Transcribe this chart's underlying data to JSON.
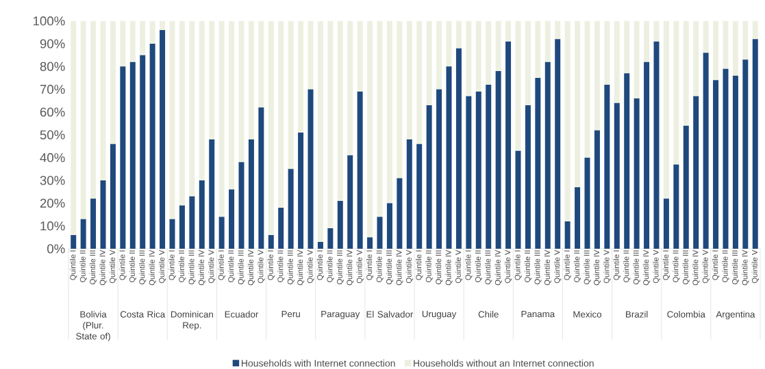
{
  "chart_data": {
    "type": "bar",
    "stacked": true,
    "categories": [
      "Quintile I",
      "Quintile II",
      "Quintile III",
      "Quintile IV",
      "Quintile V",
      "Quintile I",
      "Quintile II",
      "Quintile III",
      "Quintile IV",
      "Quintile V",
      "Quintile I",
      "Quintile II",
      "Quintile III",
      "Quintile IV",
      "Quintile V",
      "Quintile I",
      "Quintile II",
      "Quintile III",
      "Quintile IV",
      "Quintile V",
      "Quintile I",
      "Quintile II",
      "Quintile III",
      "Quintile IV",
      "Quintile V",
      "Quintile I",
      "Quintile II",
      "Quintile III",
      "Quintile IV",
      "Quintile V",
      "Quintile I",
      "Quintile II",
      "Quintile III",
      "Quintile IV",
      "Quintile V",
      "Quintile I",
      "Quintile II",
      "Quintile III",
      "Quintile IV",
      "Quintile V",
      "Quintile I",
      "Quintile II",
      "Quintile III",
      "Quintile IV",
      "Quintile V",
      "Quintile I",
      "Quintile II",
      "Quintile III",
      "Quintile IV",
      "Quintile V",
      "Quintile I",
      "Quintile II",
      "Quintile III",
      "Quintile IV",
      "Quintile V",
      "Quintile I",
      "Quintile II",
      "Quintile III",
      "Quintile IV",
      "Quintile V",
      "Quintile I",
      "Quintile II",
      "Quintile III",
      "Quintile IV",
      "Quintile V",
      "Quintile I",
      "Quintile II",
      "Quintile III",
      "Quintile IV",
      "Quintile V"
    ],
    "series": [
      {
        "name": "Households with Internet connection",
        "color": "#1f497d",
        "values": [
          6,
          13,
          22,
          30,
          46,
          80,
          82,
          85,
          90,
          96,
          13,
          19,
          23,
          30,
          48,
          14,
          26,
          38,
          48,
          62,
          6,
          18,
          35,
          51,
          70,
          3,
          9,
          21,
          41,
          69,
          5,
          14,
          20,
          31,
          48,
          46,
          63,
          70,
          80,
          88,
          67,
          69,
          72,
          78,
          91,
          43,
          63,
          75,
          82,
          92,
          12,
          27,
          40,
          52,
          72,
          64,
          77,
          66,
          82,
          91,
          22,
          37,
          54,
          67,
          86,
          74,
          79,
          76,
          83,
          92
        ]
      },
      {
        "name": "Households without an Internet connection",
        "color": "#edf0e1",
        "values": [
          94,
          87,
          78,
          70,
          54,
          20,
          18,
          15,
          10,
          4,
          87,
          81,
          77,
          70,
          52,
          86,
          74,
          62,
          52,
          38,
          94,
          82,
          65,
          49,
          30,
          97,
          91,
          79,
          59,
          31,
          95,
          86,
          80,
          69,
          52,
          54,
          37,
          30,
          20,
          12,
          33,
          31,
          28,
          22,
          9,
          57,
          37,
          25,
          18,
          8,
          88,
          73,
          60,
          48,
          28,
          36,
          23,
          34,
          18,
          9,
          78,
          63,
          46,
          33,
          14,
          26,
          21,
          24,
          17,
          8
        ]
      }
    ],
    "annotations": [
      {
        "text": "Bolivia (Plur. State of)"
      },
      {
        "text": "Costa Rica"
      },
      {
        "text": "Dominican Rep."
      },
      {
        "text": "Ecuador"
      },
      {
        "text": "Peru"
      },
      {
        "text": "Paraguay"
      },
      {
        "text": "El Salvador"
      },
      {
        "text": "Uruguay"
      },
      {
        "text": "Chile"
      },
      {
        "text": "Panama"
      },
      {
        "text": "Mexico"
      },
      {
        "text": "Brazil"
      },
      {
        "text": "Colombia"
      },
      {
        "text": "Argentina"
      }
    ],
    "ylim": [
      0,
      100
    ],
    "yticks": [
      {
        "value": 0,
        "label": "0%"
      },
      {
        "value": 10,
        "label": "10%"
      },
      {
        "value": 20,
        "label": "20%"
      },
      {
        "value": 30,
        "label": "30%"
      },
      {
        "value": 40,
        "label": "40%"
      },
      {
        "value": 50,
        "label": "50%"
      },
      {
        "value": 60,
        "label": "60%"
      },
      {
        "value": 70,
        "label": "70%"
      },
      {
        "value": 80,
        "label": "80%"
      },
      {
        "value": 90,
        "label": "90%"
      },
      {
        "value": 100,
        "label": "100%"
      }
    ],
    "legend": "bottom",
    "grid": false
  }
}
